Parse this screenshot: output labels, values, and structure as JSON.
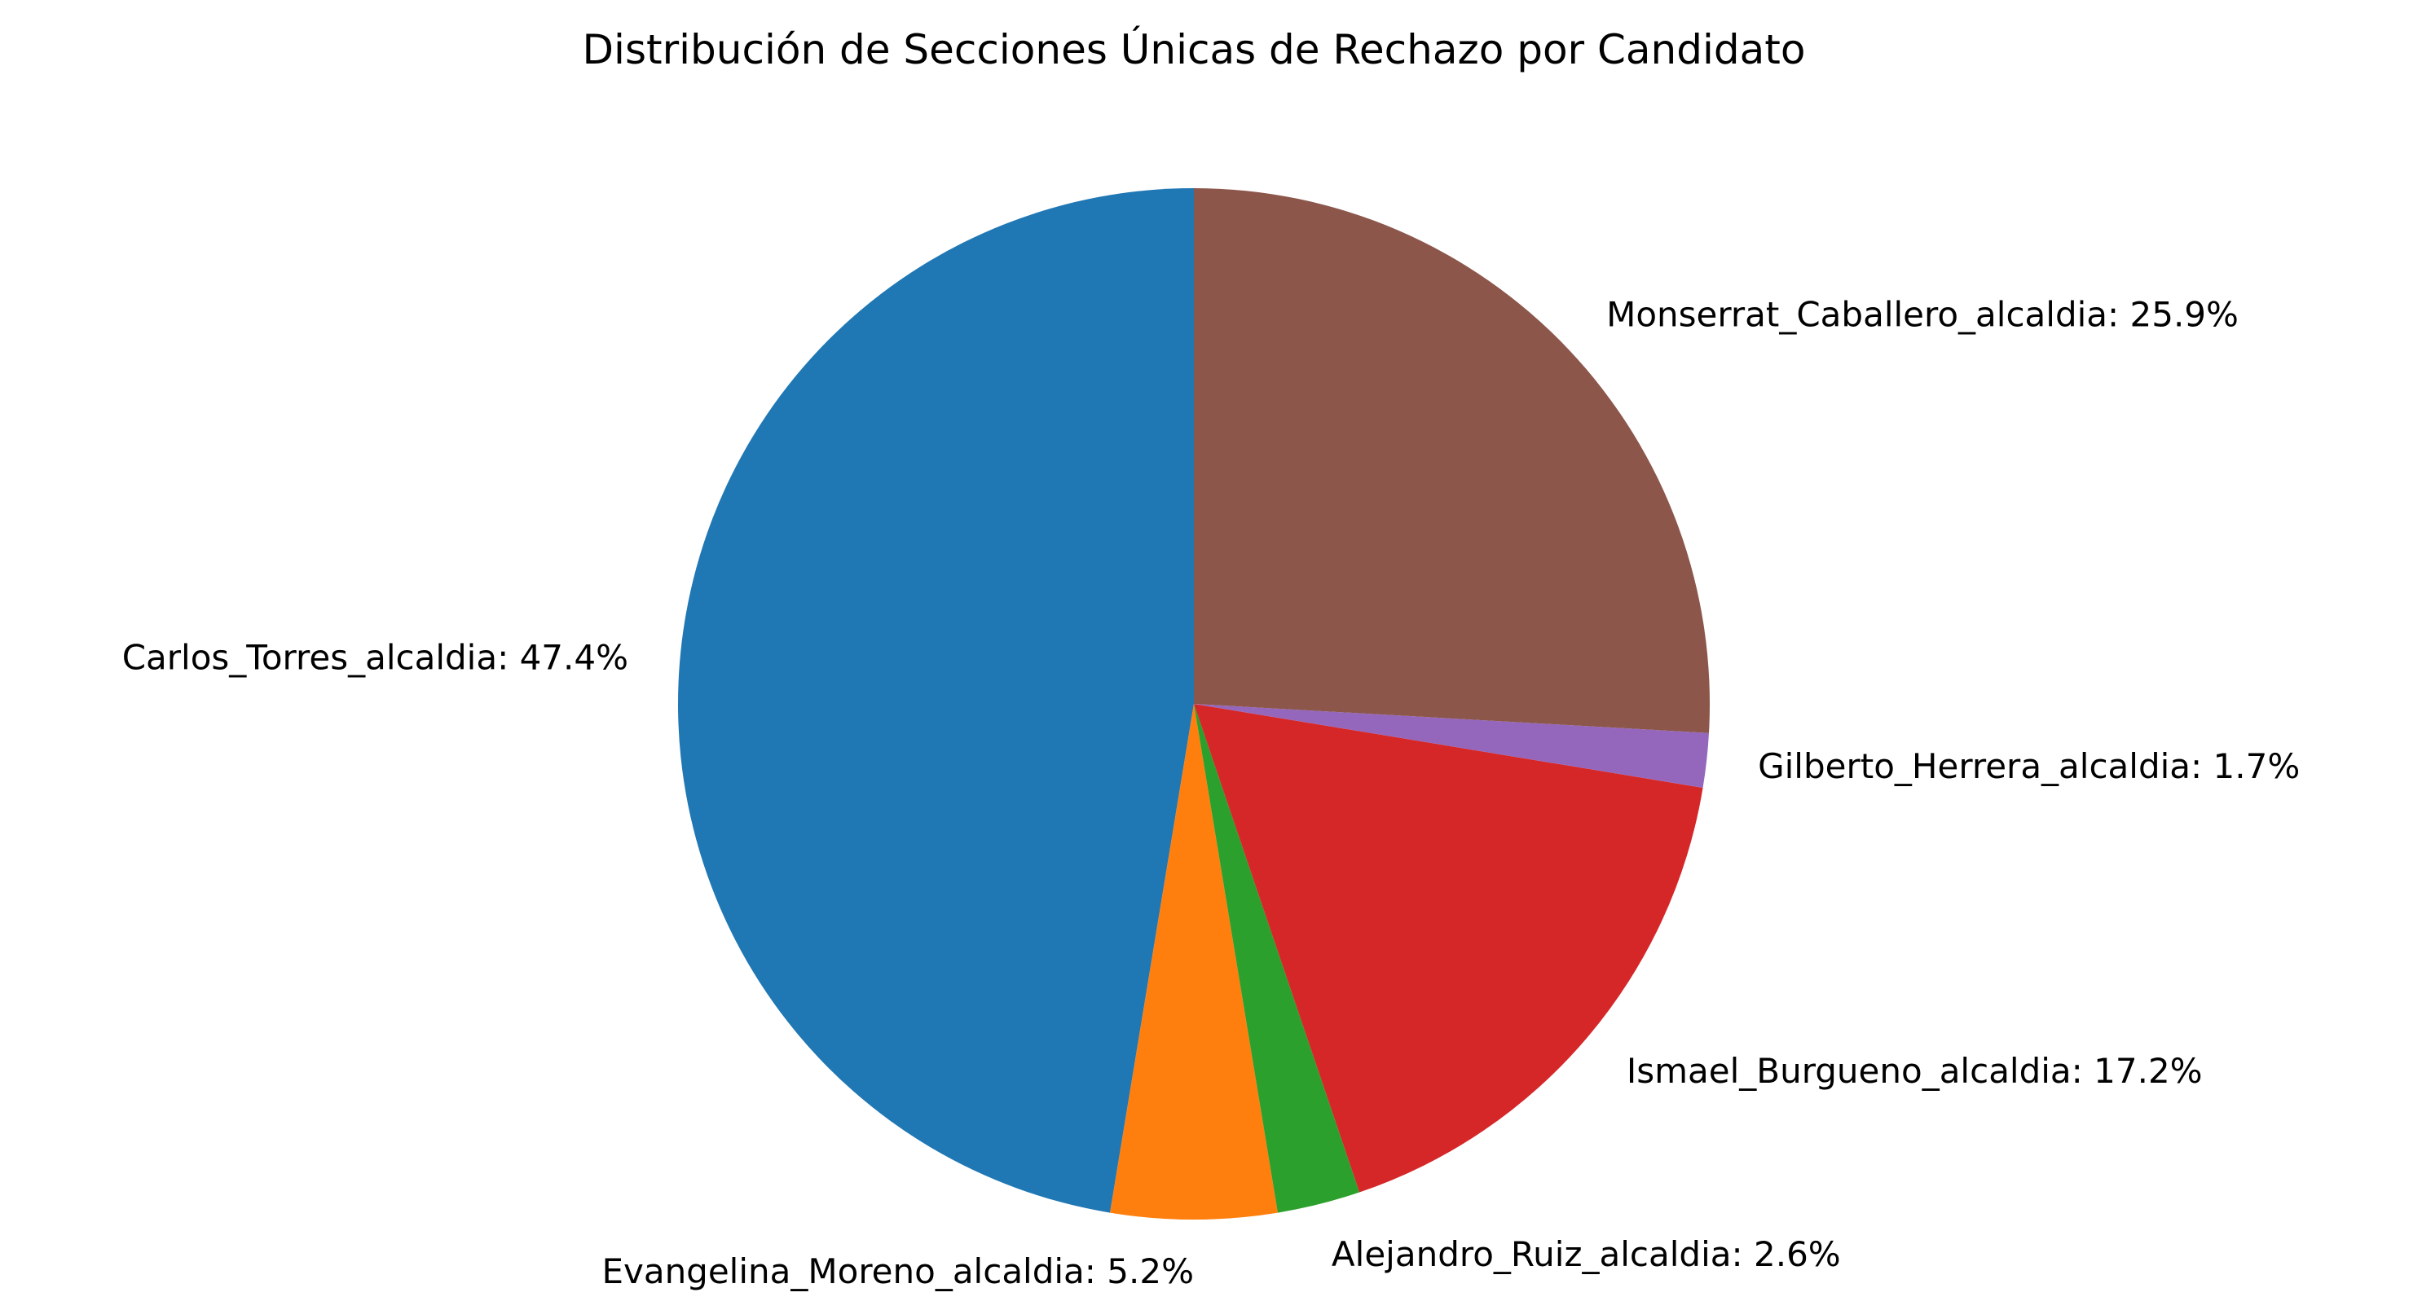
{
  "chart_data": {
    "type": "pie",
    "title": "Distribución de Secciones Únicas de Rechazo por Candidato",
    "start_angle_deg": 90,
    "direction": "counterclockwise",
    "label_format": "{name}: {value}%",
    "slices": [
      {
        "name": "Carlos_Torres_alcaldia",
        "value": 47.4,
        "label": "Carlos_Torres_alcaldia: 47.4%",
        "color": "#1f77b4"
      },
      {
        "name": "Evangelina_Moreno_alcaldia",
        "value": 5.2,
        "label": "Evangelina_Moreno_alcaldia: 5.2%",
        "color": "#ff7f0e"
      },
      {
        "name": "Alejandro_Ruiz_alcaldia",
        "value": 2.6,
        "label": "Alejandro_Ruiz_alcaldia: 2.6%",
        "color": "#2ca02c"
      },
      {
        "name": "Ismael_Burgueno_alcaldia",
        "value": 17.2,
        "label": "Ismael_Burgueno_alcaldia: 17.2%",
        "color": "#d62728"
      },
      {
        "name": "Gilberto_Herrera_alcaldia",
        "value": 1.7,
        "label": "Gilberto_Herrera_alcaldia: 1.7%",
        "color": "#9467bd"
      },
      {
        "name": "Monserrat_Caballero_alcaldia",
        "value": 25.9,
        "label": "Monserrat_Caballero_alcaldia: 25.9%",
        "color": "#8c564b"
      }
    ]
  }
}
